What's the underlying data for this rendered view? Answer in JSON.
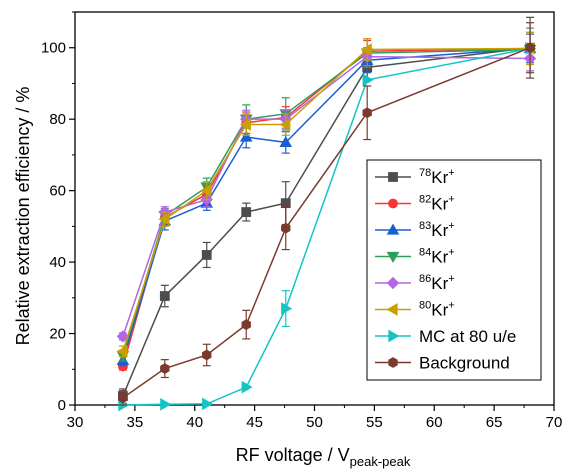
{
  "chart_data": {
    "type": "line",
    "title": "",
    "xlabel": "RF voltage / V",
    "xlabel_sub": "peak-peak",
    "ylabel": "Relative extraction efficiency / %",
    "xlim": [
      30,
      70
    ],
    "ylim": [
      0,
      110
    ],
    "xticks": [
      30,
      35,
      40,
      45,
      50,
      55,
      60,
      65,
      70
    ],
    "yticks": [
      0,
      20,
      40,
      60,
      80,
      100
    ],
    "grid": false,
    "legend_position": "bottom-right",
    "series": [
      {
        "name_sup": "78",
        "name_main": "Kr",
        "name_sup2": "+",
        "color": "#4d4d4d",
        "marker": "square",
        "points": [
          [
            34.0,
            2.5
          ],
          [
            37.5,
            30.5
          ],
          [
            41.0,
            42.0
          ],
          [
            44.3,
            54.0
          ],
          [
            47.6,
            56.5
          ],
          [
            54.4,
            94.5
          ],
          [
            68.0,
            100.0
          ]
        ],
        "errors": [
          [
            34.0,
            2.0
          ],
          [
            37.5,
            3.0
          ],
          [
            41.0,
            3.5
          ],
          [
            44.3,
            2.5
          ],
          [
            47.6,
            6.0
          ],
          [
            54.4,
            3.5
          ],
          [
            68.0,
            8.5
          ]
        ]
      },
      {
        "name_sup": "82",
        "name_main": "Kr",
        "name_sup2": "+",
        "color": "#ff3333",
        "marker": "circle",
        "points": [
          [
            34.0,
            10.8
          ],
          [
            37.5,
            52.5
          ],
          [
            41.0,
            59.0
          ],
          [
            44.3,
            79.0
          ],
          [
            47.6,
            80.5
          ],
          [
            54.4,
            99.0
          ],
          [
            68.0,
            99.8
          ]
        ],
        "errors": [
          [
            34.0,
            1.0
          ],
          [
            37.5,
            2.0
          ],
          [
            41.0,
            2.5
          ],
          [
            44.3,
            3.0
          ],
          [
            47.6,
            3.0
          ],
          [
            54.4,
            3.0
          ],
          [
            68.0,
            4.5
          ]
        ]
      },
      {
        "name_sup": "83",
        "name_main": "Kr",
        "name_sup2": "+",
        "color": "#1a5fd1",
        "marker": "triangle-up",
        "points": [
          [
            34.0,
            12.5
          ],
          [
            37.5,
            51.5
          ],
          [
            41.0,
            56.5
          ],
          [
            44.3,
            75.0
          ],
          [
            47.6,
            73.5
          ],
          [
            54.4,
            96.5
          ],
          [
            68.0,
            99.8
          ]
        ],
        "errors": [
          [
            34.0,
            1.5
          ],
          [
            37.5,
            2.5
          ],
          [
            41.0,
            2.0
          ],
          [
            44.3,
            3.0
          ],
          [
            47.6,
            3.0
          ],
          [
            54.4,
            3.5
          ],
          [
            68.0,
            4.0
          ]
        ]
      },
      {
        "name_sup": "84",
        "name_main": "Kr",
        "name_sup2": "+",
        "color": "#2e9e5b",
        "marker": "triangle-down",
        "points": [
          [
            34.0,
            13.8
          ],
          [
            37.5,
            53.0
          ],
          [
            41.0,
            61.0
          ],
          [
            44.3,
            80.0
          ],
          [
            47.6,
            81.5
          ],
          [
            54.4,
            98.5
          ],
          [
            68.0,
            99.5
          ]
        ],
        "errors": [
          [
            34.0,
            1.5
          ],
          [
            37.5,
            2.0
          ],
          [
            41.0,
            2.5
          ],
          [
            44.3,
            4.0
          ],
          [
            47.6,
            4.5
          ],
          [
            54.4,
            4.0
          ],
          [
            68.0,
            6.0
          ]
        ]
      },
      {
        "name_sup": "86",
        "name_main": "Kr",
        "name_sup2": "+",
        "color": "#b266e6",
        "marker": "diamond",
        "points": [
          [
            34.0,
            19.2
          ],
          [
            37.5,
            54.0
          ],
          [
            41.0,
            57.5
          ],
          [
            44.3,
            80.0
          ],
          [
            47.6,
            80.0
          ],
          [
            54.4,
            97.5
          ],
          [
            68.0,
            97.0
          ]
        ],
        "errors": [
          [
            34.0,
            1.0
          ],
          [
            37.5,
            1.5
          ],
          [
            41.0,
            2.0
          ],
          [
            44.3,
            2.5
          ],
          [
            47.6,
            2.5
          ],
          [
            54.4,
            2.5
          ],
          [
            68.0,
            3.5
          ]
        ]
      },
      {
        "name_sup": "80",
        "name_main": "Kr",
        "name_sup2": "+",
        "color": "#c9a000",
        "marker": "triangle-left",
        "points": [
          [
            34.0,
            15.0
          ],
          [
            37.5,
            52.0
          ],
          [
            41.0,
            60.0
          ],
          [
            44.3,
            78.5
          ],
          [
            47.6,
            78.5
          ],
          [
            54.4,
            99.5
          ],
          [
            68.0,
            99.8
          ]
        ],
        "errors": [
          [
            34.0,
            1.5
          ],
          [
            37.5,
            2.0
          ],
          [
            41.0,
            2.5
          ],
          [
            44.3,
            3.0
          ],
          [
            47.6,
            3.0
          ],
          [
            54.4,
            3.0
          ],
          [
            68.0,
            4.5
          ]
        ]
      },
      {
        "name_main": "MC at 80 u/e",
        "color": "#14c4c4",
        "marker": "triangle-right",
        "points": [
          [
            34.0,
            0.0
          ],
          [
            37.5,
            0.2
          ],
          [
            41.0,
            0.3
          ],
          [
            44.3,
            5.0
          ],
          [
            47.6,
            27.0
          ],
          [
            54.4,
            91.0
          ],
          [
            68.0,
            99.8
          ]
        ],
        "errors": [
          [
            47.6,
            5.0
          ]
        ]
      },
      {
        "name_main": "Background",
        "color": "#7a3b2e",
        "marker": "hexagon",
        "points": [
          [
            34.0,
            2.0
          ],
          [
            37.5,
            10.2
          ],
          [
            41.0,
            14.0
          ],
          [
            44.3,
            22.5
          ],
          [
            47.6,
            49.5
          ],
          [
            54.4,
            81.8
          ],
          [
            68.0,
            100.0
          ]
        ],
        "errors": [
          [
            34.0,
            2.0
          ],
          [
            37.5,
            2.5
          ],
          [
            41.0,
            3.0
          ],
          [
            44.3,
            4.0
          ],
          [
            47.6,
            6.0
          ],
          [
            54.4,
            7.5
          ],
          [
            68.0,
            7.0
          ]
        ]
      }
    ]
  }
}
